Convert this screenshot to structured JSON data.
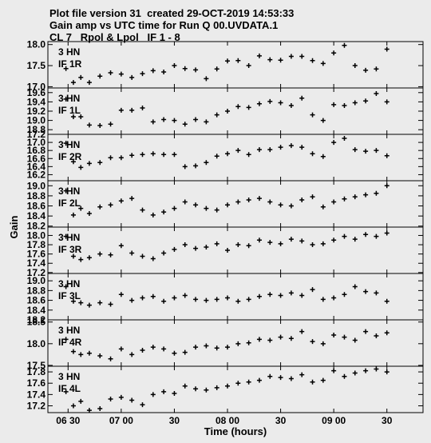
{
  "header": {
    "line1": "Plot file version 31  created 29-OCT-2019 14:53:33",
    "line2": "Gain amp vs UTC time for Run Q 00.UVDATA.1",
    "line3": "CL 7   Rpol & Lpol   IF 1 - 8"
  },
  "colors": {
    "background": "#ebebeb",
    "ink": "#000000"
  },
  "chart_data": {
    "type": "scatter",
    "xlabel": "Time (hours)",
    "ylabel": "Gain",
    "x_ticks": [
      "06 30",
      "07 00",
      "30",
      "08 00",
      "30",
      "09 00",
      "30"
    ],
    "x_tick_hours": [
      6.5,
      7.0,
      7.5,
      8.0,
      8.5,
      9.0,
      9.5
    ],
    "xlim": [
      6.31,
      9.84
    ],
    "marker": "plus",
    "panels": [
      {
        "antenna": "3 HN",
        "if": "IF 1R",
        "ylim": [
          16.97,
          18.07
        ],
        "yticks": [
          17.0,
          17.5,
          18.0
        ],
        "ytick_labels": [
          "17.0",
          "17.5",
          "18.0"
        ],
        "x": [
          6.48,
          6.55,
          6.62,
          6.7,
          6.8,
          6.9,
          7.0,
          7.1,
          7.2,
          7.3,
          7.4,
          7.5,
          7.6,
          7.7,
          7.8,
          7.9,
          8.0,
          8.1,
          8.2,
          8.3,
          8.4,
          8.5,
          8.6,
          8.7,
          8.8,
          8.9,
          9.0,
          9.1,
          9.2,
          9.3,
          9.4,
          9.5
        ],
        "y": [
          17.43,
          17.1,
          17.22,
          17.1,
          17.25,
          17.33,
          17.3,
          17.22,
          17.31,
          17.38,
          17.35,
          17.5,
          17.43,
          17.4,
          17.19,
          17.42,
          17.61,
          17.62,
          17.5,
          17.73,
          17.64,
          17.63,
          17.72,
          17.72,
          17.62,
          17.55,
          17.8,
          17.98,
          17.5,
          17.39,
          17.42,
          17.89
        ]
      },
      {
        "antenna": "3 HN",
        "if": "IF 1L",
        "ylim": [
          18.7,
          19.7
        ],
        "yticks": [
          18.8,
          19.0,
          19.2,
          19.4,
          19.6
        ],
        "ytick_labels": [
          "18.8",
          "19.0",
          "19.2",
          "19.4",
          "19.6"
        ],
        "x": [
          6.48,
          6.55,
          6.62,
          6.7,
          6.8,
          6.9,
          7.0,
          7.1,
          7.2,
          7.3,
          7.4,
          7.5,
          7.6,
          7.7,
          7.8,
          7.9,
          8.0,
          8.1,
          8.2,
          8.3,
          8.4,
          8.5,
          8.6,
          8.7,
          8.8,
          8.9,
          9.0,
          9.1,
          9.2,
          9.3,
          9.4,
          9.5
        ],
        "y": [
          19.46,
          19.08,
          19.08,
          18.9,
          18.89,
          18.92,
          19.22,
          19.22,
          19.27,
          18.97,
          19.02,
          19.0,
          18.92,
          19.02,
          18.97,
          19.12,
          19.2,
          19.3,
          19.28,
          19.36,
          19.41,
          19.38,
          19.32,
          19.48,
          19.12,
          19.0,
          19.34,
          19.32,
          19.38,
          19.42,
          19.58,
          19.4
        ]
      },
      {
        "antenna": "3 HN",
        "if": "IF 2R",
        "ylim": [
          16.05,
          17.2
        ],
        "yticks": [
          16.2,
          16.4,
          16.6,
          16.8,
          17.0,
          17.2
        ],
        "ytick_labels": [
          "16.2",
          "16.4",
          "16.6",
          "16.8",
          "17.0",
          "17.2"
        ],
        "x": [
          6.48,
          6.55,
          6.62,
          6.7,
          6.8,
          6.9,
          7.0,
          7.1,
          7.2,
          7.3,
          7.4,
          7.5,
          7.6,
          7.7,
          7.8,
          7.9,
          8.0,
          8.1,
          8.2,
          8.3,
          8.4,
          8.5,
          8.6,
          8.7,
          8.8,
          8.9,
          9.0,
          9.1,
          9.2,
          9.3,
          9.4,
          9.5
        ],
        "y": [
          16.98,
          16.52,
          16.38,
          16.48,
          16.5,
          16.62,
          16.62,
          16.68,
          16.7,
          16.72,
          16.7,
          16.7,
          16.4,
          16.42,
          16.5,
          16.66,
          16.72,
          16.8,
          16.7,
          16.82,
          16.82,
          16.88,
          16.92,
          16.88,
          16.72,
          16.65,
          17.0,
          17.1,
          16.82,
          16.78,
          16.8,
          16.67
        ]
      },
      {
        "antenna": "3 HN",
        "if": "IF 2L",
        "ylim": [
          18.18,
          19.1
        ],
        "yticks": [
          18.2,
          18.4,
          18.6,
          18.8,
          19.0
        ],
        "ytick_labels": [
          "18.2",
          "18.4",
          "18.6",
          "18.8",
          "19.0"
        ],
        "x": [
          6.48,
          6.55,
          6.62,
          6.7,
          6.8,
          6.9,
          7.0,
          7.1,
          7.2,
          7.3,
          7.4,
          7.5,
          7.6,
          7.7,
          7.8,
          7.9,
          8.0,
          8.1,
          8.2,
          8.3,
          8.4,
          8.5,
          8.6,
          8.7,
          8.8,
          8.9,
          9.0,
          9.1,
          9.2,
          9.3,
          9.4,
          9.5
        ],
        "y": [
          18.9,
          18.42,
          18.55,
          18.45,
          18.58,
          18.62,
          18.7,
          18.75,
          18.52,
          18.42,
          18.48,
          18.55,
          18.68,
          18.62,
          18.55,
          18.52,
          18.62,
          18.68,
          18.72,
          18.75,
          18.68,
          18.62,
          18.6,
          18.72,
          18.78,
          18.58,
          18.68,
          18.74,
          18.78,
          18.82,
          18.85,
          19.0
        ]
      },
      {
        "antenna": "3 HN",
        "if": "IF 3R",
        "ylim": [
          17.18,
          18.18
        ],
        "yticks": [
          17.2,
          17.4,
          17.6,
          17.8,
          18.0
        ],
        "ytick_labels": [
          "17.2",
          "17.4",
          "17.6",
          "17.8",
          "18.0"
        ],
        "x": [
          6.48,
          6.55,
          6.62,
          6.7,
          6.8,
          6.9,
          7.0,
          7.1,
          7.2,
          7.3,
          7.4,
          7.5,
          7.6,
          7.7,
          7.8,
          7.9,
          8.0,
          8.1,
          8.2,
          8.3,
          8.4,
          8.5,
          8.6,
          8.7,
          8.8,
          8.9,
          9.0,
          9.1,
          9.2,
          9.3,
          9.4,
          9.5
        ],
        "y": [
          17.98,
          17.55,
          17.48,
          17.52,
          17.6,
          17.58,
          17.78,
          17.62,
          17.55,
          17.5,
          17.62,
          17.7,
          17.8,
          17.72,
          17.75,
          17.82,
          17.68,
          17.8,
          17.78,
          17.9,
          17.85,
          17.82,
          17.92,
          17.88,
          17.8,
          17.82,
          17.9,
          17.98,
          17.92,
          18.02,
          17.98,
          18.05
        ]
      },
      {
        "antenna": "3 HN",
        "if": "IF 3L",
        "ylim": [
          18.2,
          19.15
        ],
        "yticks": [
          18.2,
          18.4,
          18.6,
          18.8,
          19.0
        ],
        "ytick_labels": [
          "18.2",
          "18.4",
          "18.6",
          "18.8",
          "19.0"
        ],
        "x": [
          6.48,
          6.55,
          6.62,
          6.7,
          6.8,
          6.9,
          7.0,
          7.1,
          7.2,
          7.3,
          7.4,
          7.5,
          7.6,
          7.7,
          7.8,
          7.9,
          8.0,
          8.1,
          8.2,
          8.3,
          8.4,
          8.5,
          8.6,
          8.7,
          8.8,
          8.9,
          9.0,
          9.1,
          9.2,
          9.3,
          9.4,
          9.5
        ],
        "y": [
          18.88,
          18.58,
          18.55,
          18.5,
          18.55,
          18.52,
          18.72,
          18.6,
          18.65,
          18.68,
          18.58,
          18.65,
          18.7,
          18.62,
          18.6,
          18.62,
          18.65,
          18.58,
          18.62,
          18.68,
          18.72,
          18.7,
          18.75,
          18.7,
          18.82,
          18.62,
          18.65,
          18.72,
          18.88,
          18.78,
          18.75,
          18.58
        ]
      },
      {
        "antenna": "3 HN",
        "if": "IF 4R",
        "ylim": [
          17.48,
          18.55
        ],
        "yticks": [
          17.5,
          18.0,
          18.5
        ],
        "ytick_labels": [
          "17.5",
          "18.0",
          "18.5"
        ],
        "x": [
          6.48,
          6.55,
          6.62,
          6.7,
          6.8,
          6.9,
          7.0,
          7.1,
          7.2,
          7.3,
          7.4,
          7.5,
          7.6,
          7.7,
          7.8,
          7.9,
          8.0,
          8.1,
          8.2,
          8.3,
          8.4,
          8.5,
          8.6,
          8.7,
          8.8,
          8.9,
          9.0,
          9.1,
          9.2,
          9.3,
          9.4,
          9.5
        ],
        "y": [
          18.1,
          17.82,
          17.75,
          17.78,
          17.72,
          17.65,
          17.88,
          17.75,
          17.85,
          17.92,
          17.88,
          17.78,
          17.8,
          17.92,
          17.95,
          17.9,
          17.92,
          18.0,
          18.02,
          18.1,
          18.08,
          18.15,
          18.12,
          18.28,
          18.05,
          18.0,
          18.2,
          18.15,
          18.08,
          18.28,
          18.18,
          18.25
        ]
      },
      {
        "antenna": "3 HN",
        "if": "IF 4L",
        "ylim": [
          17.08,
          17.9
        ],
        "yticks": [
          17.2,
          17.4,
          17.6,
          17.8
        ],
        "ytick_labels": [
          "17.2",
          "17.4",
          "17.6",
          "17.8"
        ],
        "x": [
          6.48,
          6.55,
          6.62,
          6.7,
          6.8,
          6.9,
          7.0,
          7.1,
          7.2,
          7.3,
          7.4,
          7.5,
          7.6,
          7.7,
          7.8,
          7.9,
          8.0,
          8.1,
          8.2,
          8.3,
          8.4,
          8.5,
          8.6,
          8.7,
          8.8,
          8.9,
          9.0,
          9.1,
          9.2,
          9.3,
          9.4,
          9.5
        ],
        "y": [
          17.45,
          17.2,
          17.28,
          17.12,
          17.15,
          17.32,
          17.35,
          17.3,
          17.22,
          17.4,
          17.45,
          17.42,
          17.55,
          17.5,
          17.48,
          17.52,
          17.55,
          17.6,
          17.62,
          17.65,
          17.72,
          17.7,
          17.68,
          17.75,
          17.62,
          17.65,
          17.82,
          17.72,
          17.78,
          17.82,
          17.85,
          17.8
        ]
      }
    ]
  }
}
